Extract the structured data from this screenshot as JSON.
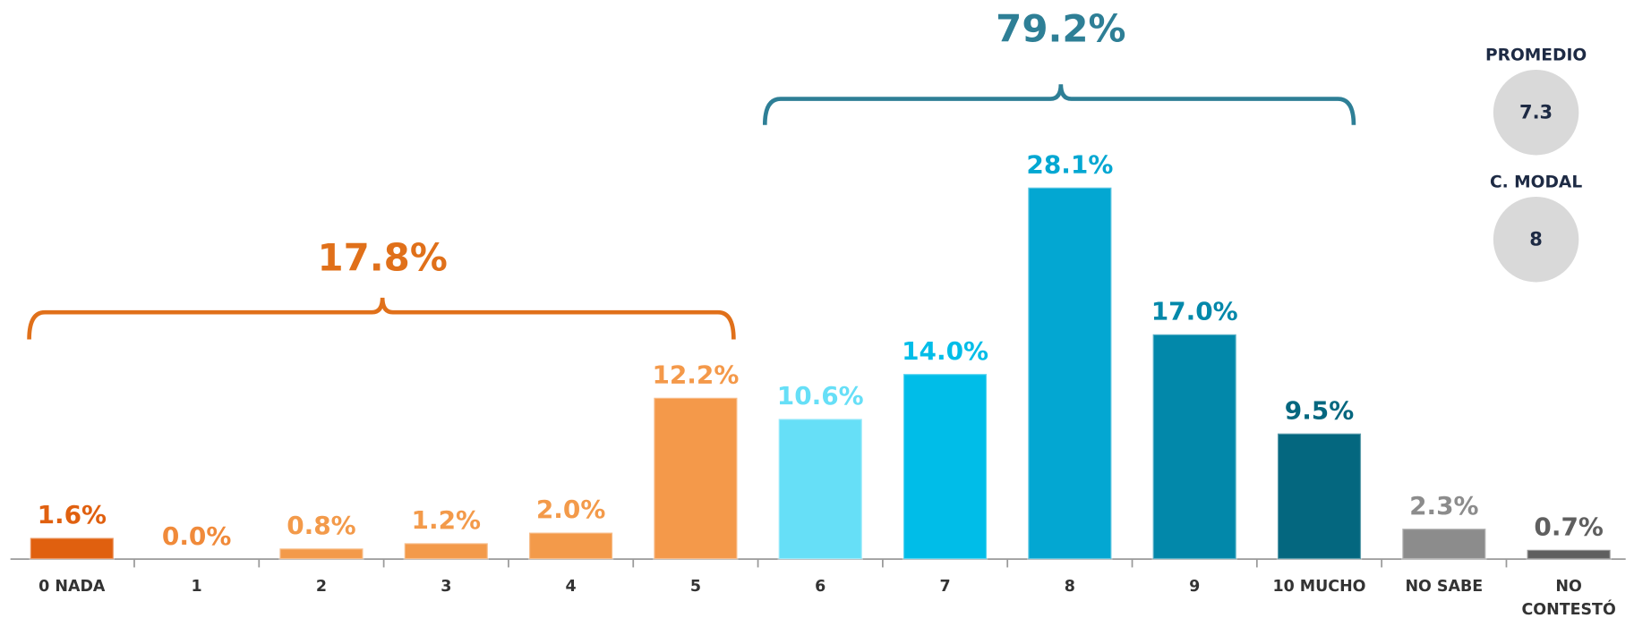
{
  "chart_data": {
    "type": "bar",
    "categories": [
      "0 NADA",
      "1",
      "2",
      "3",
      "4",
      "5",
      "6",
      "7",
      "8",
      "9",
      "10 MUCHO",
      "NO SABE",
      "NO CONTESTÓ"
    ],
    "values": [
      1.6,
      0.0,
      0.8,
      1.2,
      2.0,
      12.2,
      10.6,
      14.0,
      28.1,
      17.0,
      9.5,
      2.3,
      0.7
    ],
    "value_labels": [
      "1.6%",
      "0.0%",
      "0.8%",
      "1.2%",
      "2.0%",
      "12.2%",
      "10.6%",
      "14.0%",
      "28.1%",
      "17.0%",
      "9.5%",
      "2.3%",
      "0.7%"
    ],
    "colors": [
      "#e0600f",
      "#f08a3a",
      "#f39a4a",
      "#f39a4a",
      "#f39a4a",
      "#f4994a",
      "#66dff7",
      "#00bde8",
      "#03a7d2",
      "#0288aa",
      "#04677f",
      "#8c8c8c",
      "#5f5f5f"
    ],
    "annotations": [
      {
        "text": "17.8%",
        "color": "#e0701a"
      },
      {
        "text": "79.2%",
        "color": "#2e7f96"
      }
    ],
    "summary": [
      {
        "label": "PROMEDIO",
        "value": 7.3
      },
      {
        "label": "C. MODAL",
        "value": 8
      }
    ]
  }
}
